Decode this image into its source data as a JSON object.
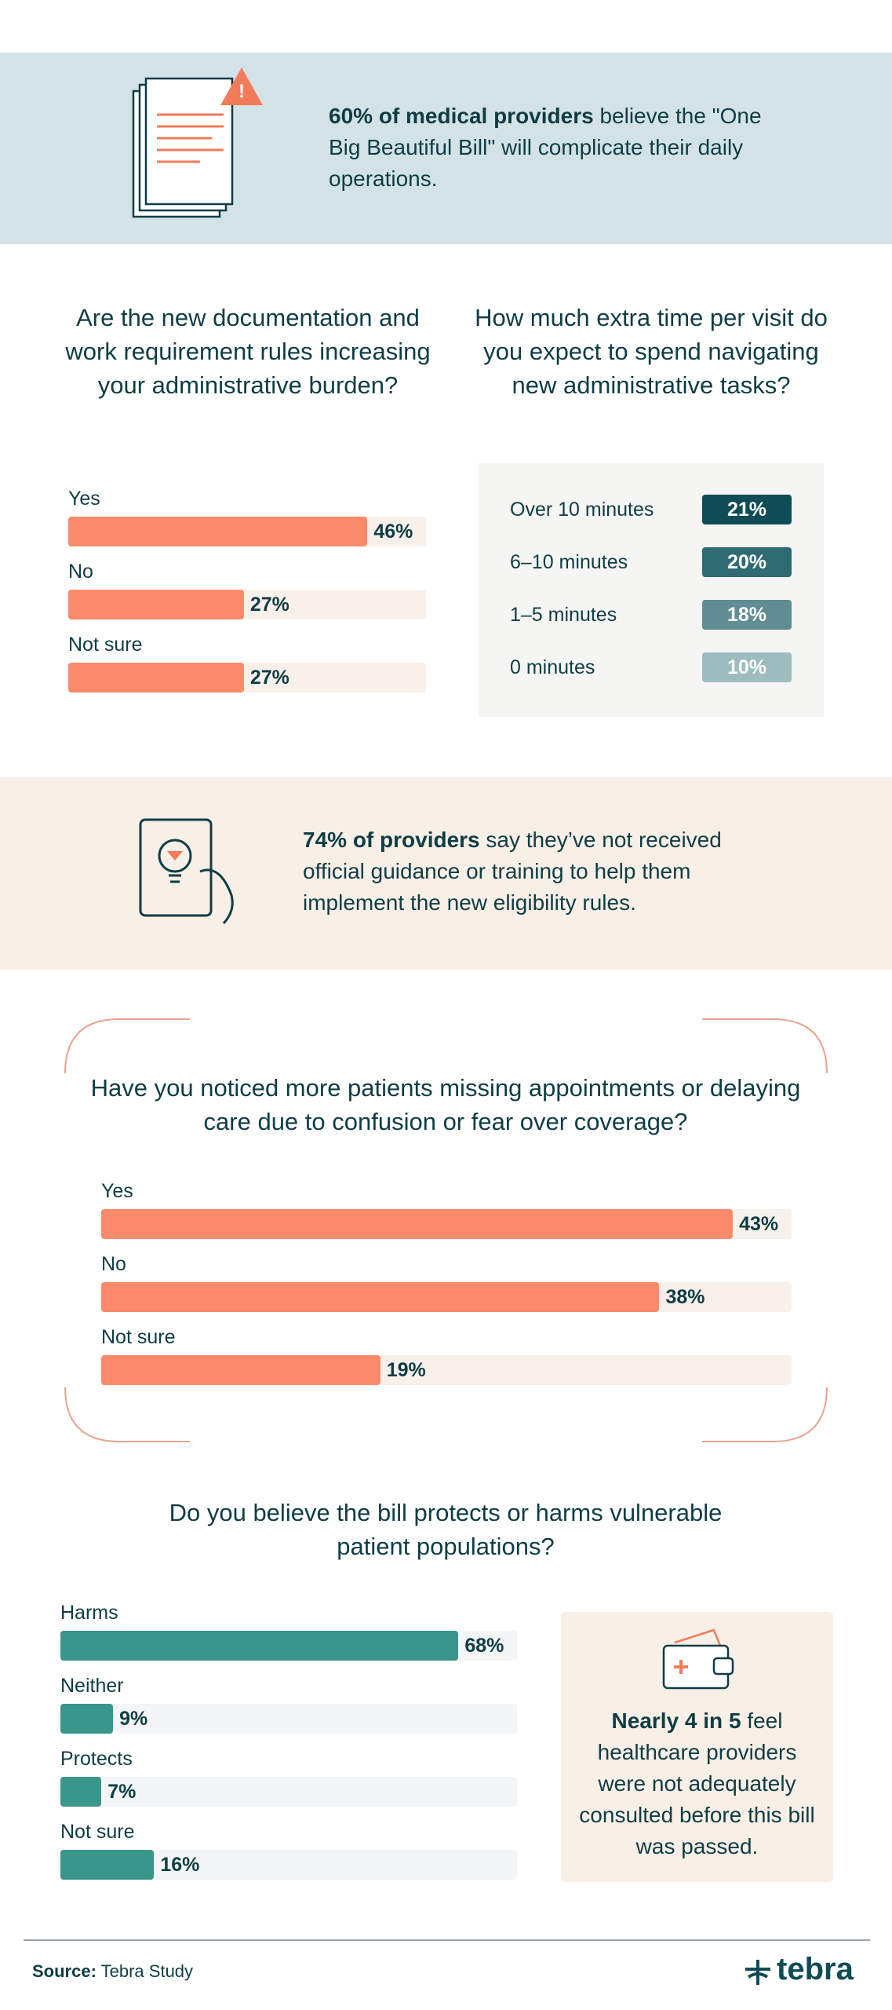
{
  "callouts": [
    {
      "bold": "60% of medical providers",
      "text": " believe the \"One Big Beautiful Bill\" will complicate their daily operations."
    },
    {
      "bold": "74% of providers",
      "text": " say they’ve not received official guidance or training to help them implement the new eligibility rules."
    },
    {
      "bold": "Nearly 4 in 5",
      "text": " feel healthcare providers were not adequately consulted before this bill was passed."
    }
  ],
  "chart_data": [
    {
      "type": "hbar",
      "title": "Are the new documentation and work requirement rules increasing your administrative burden?",
      "categories": [
        "Yes",
        "No",
        "Not sure"
      ],
      "values": [
        46,
        27,
        27
      ],
      "value_labels": [
        "46%",
        "27%",
        "27%"
      ],
      "xlim": [
        0,
        55
      ],
      "color": "#fb8a6a",
      "track_color": "#f8f0ea"
    },
    {
      "type": "badges",
      "title": "How much extra time per visit do you expect to spend navigating new administrative tasks?",
      "categories": [
        "Over 10 minutes",
        "6–10 minutes",
        "1–5 minutes",
        "0 minutes"
      ],
      "values": [
        21,
        20,
        18,
        10
      ],
      "value_labels": [
        "21%",
        "20%",
        "18%",
        "10%"
      ],
      "colors": [
        "#0f4c55",
        "#2f6b72",
        "#5f8d92",
        "#9dbcbf"
      ]
    },
    {
      "type": "hbar",
      "title": "Have you noticed more patients missing appointments or delaying care due to confusion or fear over coverage?",
      "categories": [
        "Yes",
        "No",
        "Not sure"
      ],
      "values": [
        43,
        38,
        19
      ],
      "value_labels": [
        "43%",
        "38%",
        "19%"
      ],
      "xlim": [
        0,
        47
      ],
      "color": "#fb8a6a",
      "track_color": "#f8f0ea"
    },
    {
      "type": "hbar",
      "title": "Do you believe the bill protects or harms vulnerable patient populations?",
      "categories": [
        "Harms",
        "Neither",
        "Protects",
        "Not sure"
      ],
      "values": [
        68,
        9,
        7,
        16
      ],
      "value_labels": [
        "68%",
        "9%",
        "7%",
        "16%"
      ],
      "xlim": [
        0,
        78
      ],
      "color": "#3a958a",
      "track_color": "#f3f5f6"
    }
  ],
  "footer": {
    "source_label": "Source:",
    "source": " Tebra Study",
    "logo": "tebra"
  }
}
